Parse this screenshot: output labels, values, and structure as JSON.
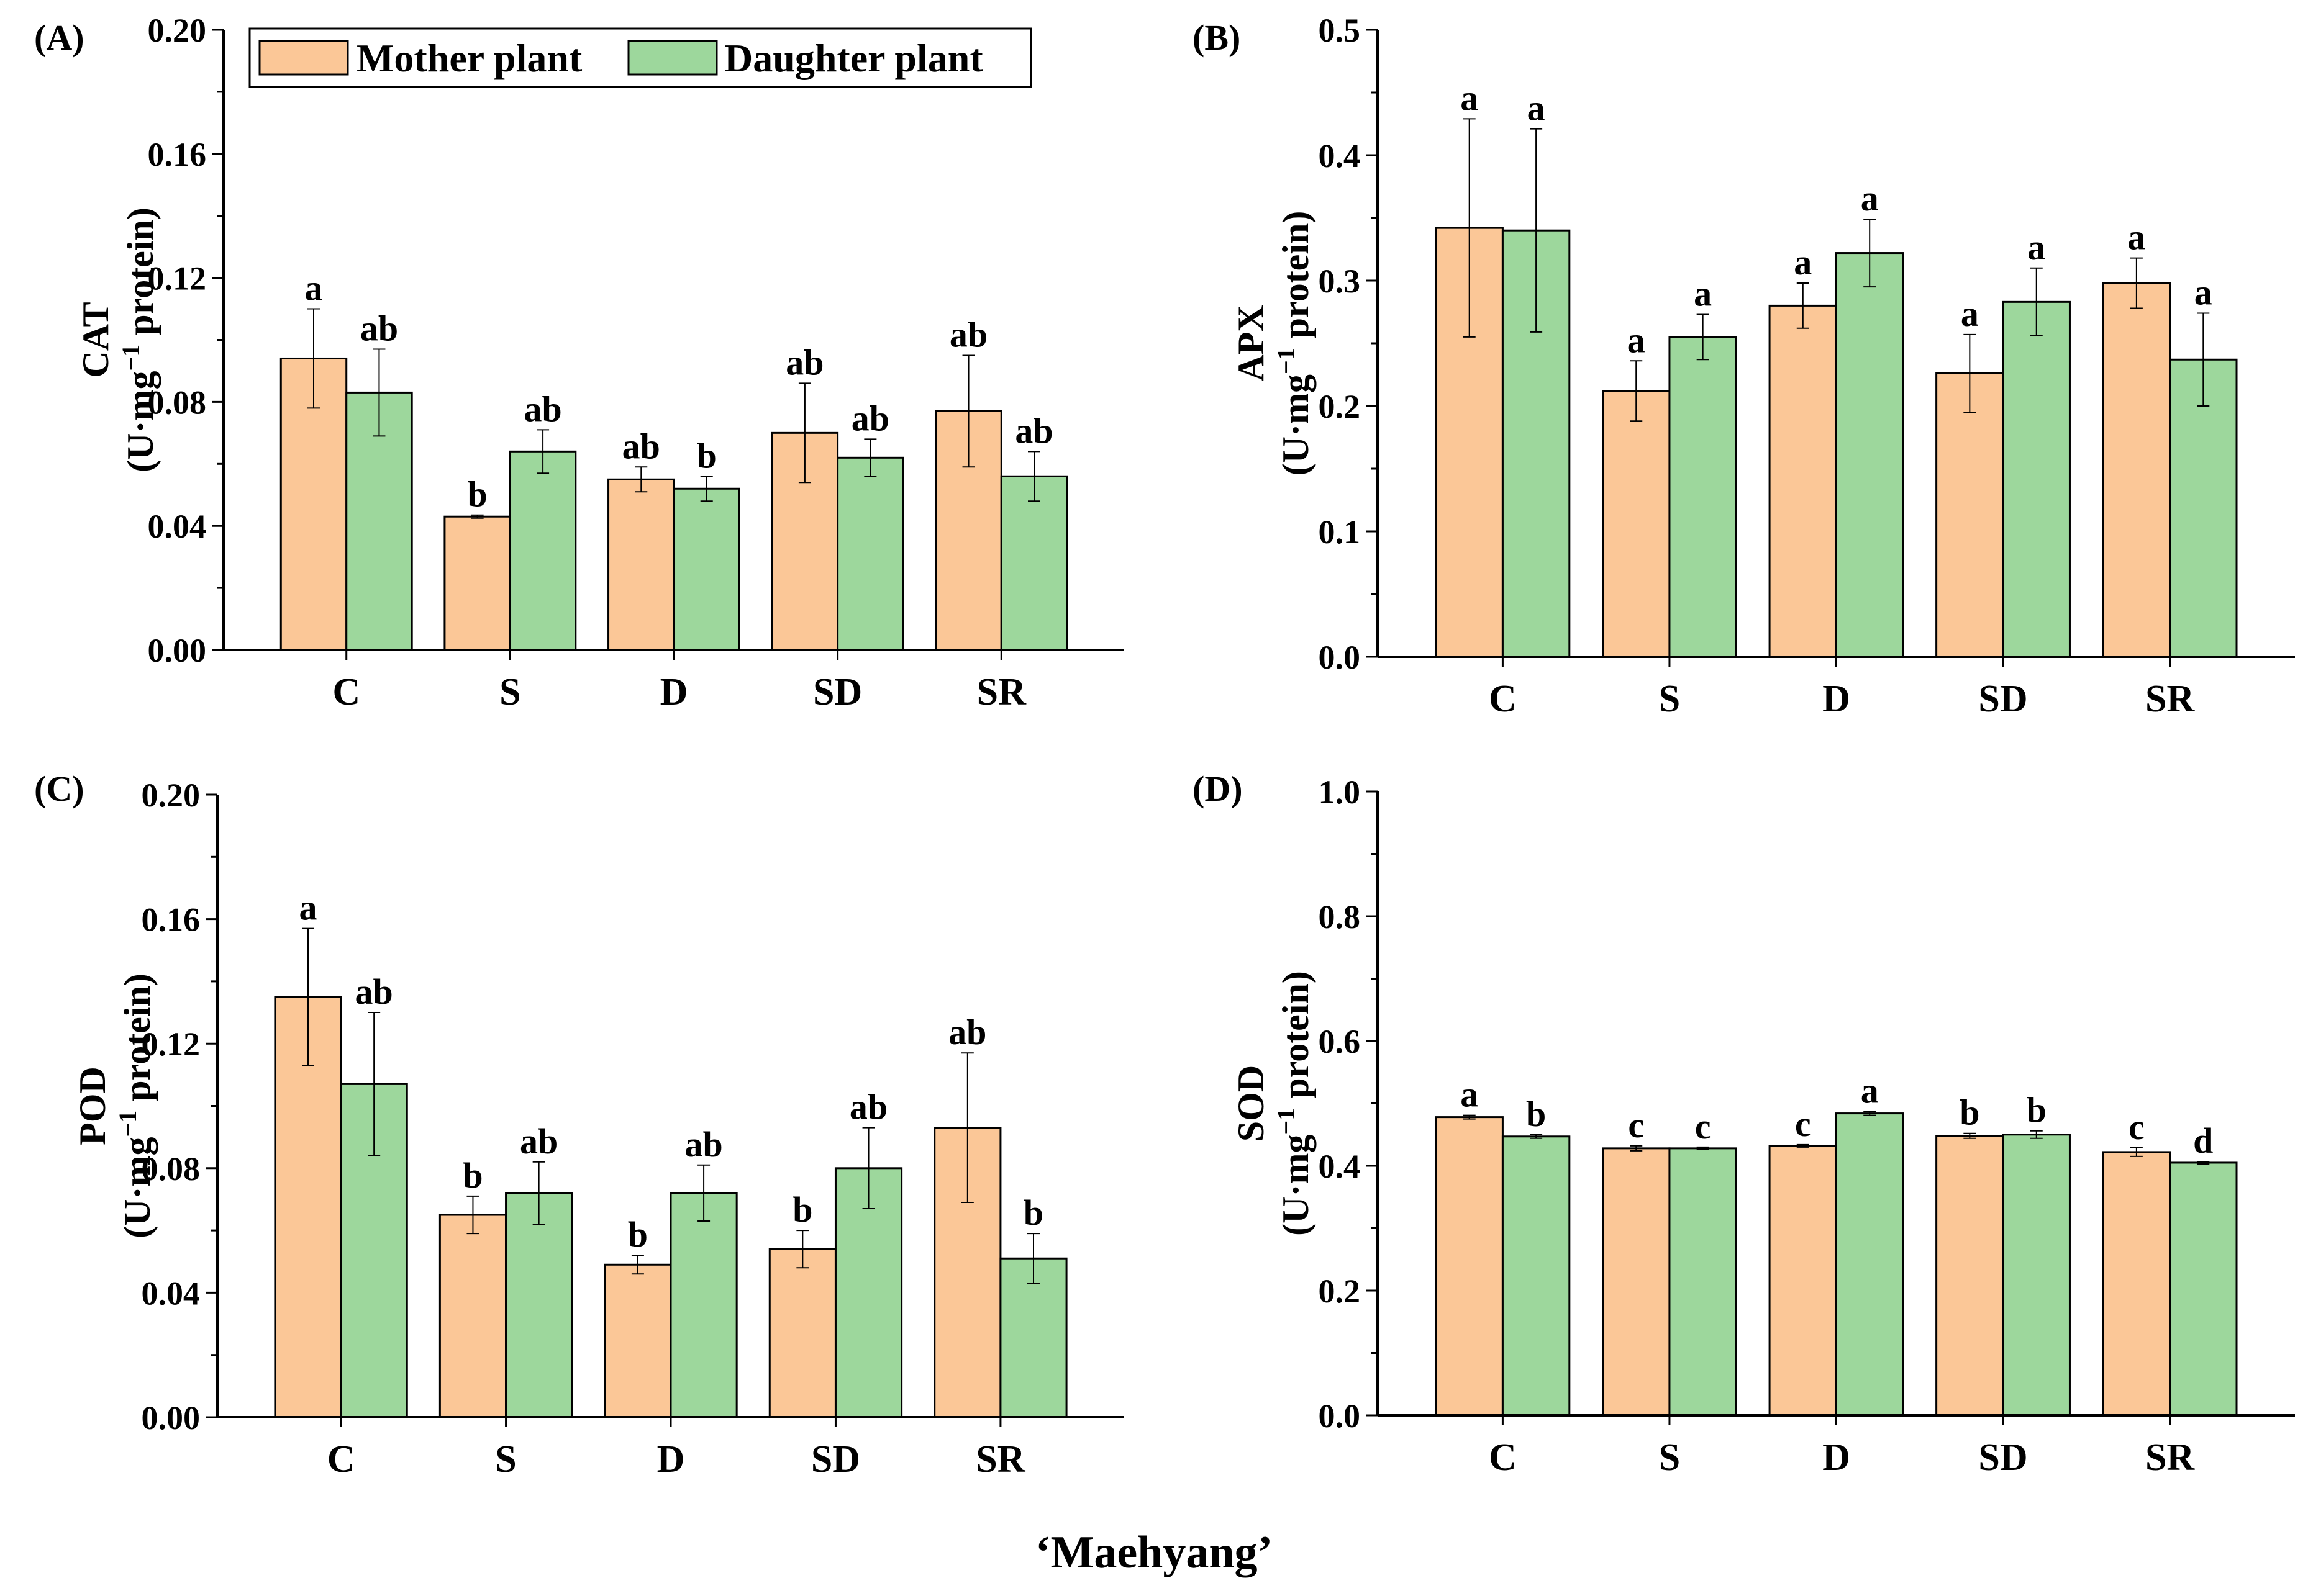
{
  "figure": {
    "x_title": "‘Maehyang’"
  },
  "legend": {
    "mother": "Mother plant",
    "daughter": "Daughter plant"
  },
  "colors": {
    "mother": "#FBC797",
    "daughter": "#9DD79C",
    "axis": "#000000"
  },
  "chart_data": [
    {
      "id": "A",
      "panel_label": "(A)",
      "type": "bar",
      "ylabel_main": "CAT",
      "ylabel_unit": "(U·mg",
      "ylabel_sup": "−1",
      "ylabel_tail": " protein)",
      "ylim": [
        0,
        0.2
      ],
      "yticks": [
        0,
        0.04,
        0.08,
        0.12,
        0.16,
        0.2
      ],
      "ytick_labels": [
        "0.00",
        "0.04",
        "0.08",
        "0.12",
        "0.16",
        "0.20"
      ],
      "categories": [
        "C",
        "S",
        "D",
        "SD",
        "SR"
      ],
      "series": [
        {
          "name": "Mother plant",
          "values": [
            0.094,
            0.043,
            0.055,
            0.07,
            0.077
          ],
          "errors": [
            0.016,
            0.0005,
            0.004,
            0.016,
            0.018
          ],
          "letters": [
            "a",
            "b",
            "ab",
            "ab",
            "ab"
          ]
        },
        {
          "name": "Daughter plant",
          "values": [
            0.083,
            0.064,
            0.052,
            0.062,
            0.056
          ],
          "errors": [
            0.014,
            0.007,
            0.004,
            0.006,
            0.008
          ],
          "letters": [
            "ab",
            "ab",
            "b",
            "ab",
            "ab"
          ]
        }
      ]
    },
    {
      "id": "B",
      "panel_label": "(B)",
      "type": "bar",
      "ylabel_main": "APX",
      "ylabel_unit": "(U·mg",
      "ylabel_sup": "−1",
      "ylabel_tail": " protein)",
      "ylim": [
        0,
        0.5
      ],
      "yticks": [
        0,
        0.1,
        0.2,
        0.3,
        0.4,
        0.5
      ],
      "ytick_labels": [
        "0.0",
        "0.1",
        "0.2",
        "0.3",
        "0.4",
        "0.5"
      ],
      "categories": [
        "C",
        "S",
        "D",
        "SD",
        "SR"
      ],
      "series": [
        {
          "name": "Mother plant",
          "values": [
            0.342,
            0.212,
            0.28,
            0.226,
            0.298
          ],
          "errors": [
            0.087,
            0.024,
            0.018,
            0.031,
            0.02
          ],
          "letters": [
            "a",
            "a",
            "a",
            "a",
            "a"
          ]
        },
        {
          "name": "Daughter plant",
          "values": [
            0.34,
            0.255,
            0.322,
            0.283,
            0.237
          ],
          "errors": [
            0.081,
            0.018,
            0.027,
            0.027,
            0.037
          ],
          "letters": [
            "a",
            "a",
            "a",
            "a",
            "a"
          ]
        }
      ]
    },
    {
      "id": "C",
      "panel_label": "(C)",
      "type": "bar",
      "ylabel_main": "POD",
      "ylabel_unit": "(U·mg",
      "ylabel_sup": "−1",
      "ylabel_tail": " protein)",
      "ylim": [
        0,
        0.2
      ],
      "yticks": [
        0,
        0.04,
        0.08,
        0.12,
        0.16,
        0.2
      ],
      "ytick_labels": [
        "0.00",
        "0.04",
        "0.08",
        "0.12",
        "0.16",
        "0.20"
      ],
      "categories": [
        "C",
        "S",
        "D",
        "SD",
        "SR"
      ],
      "series": [
        {
          "name": "Mother plant",
          "values": [
            0.135,
            0.065,
            0.049,
            0.054,
            0.093
          ],
          "errors": [
            0.022,
            0.006,
            0.003,
            0.006,
            0.024
          ],
          "letters": [
            "a",
            "b",
            "b",
            "b",
            "ab"
          ]
        },
        {
          "name": "Daughter plant",
          "values": [
            0.107,
            0.072,
            0.072,
            0.08,
            0.051
          ],
          "errors": [
            0.023,
            0.01,
            0.009,
            0.013,
            0.008
          ],
          "letters": [
            "ab",
            "ab",
            "ab",
            "ab",
            "b"
          ]
        }
      ]
    },
    {
      "id": "D",
      "panel_label": "(D)",
      "type": "bar",
      "ylabel_main": "SOD",
      "ylabel_unit": "(U·mg",
      "ylabel_sup": "−1",
      "ylabel_tail": " protein)",
      "ylim": [
        0,
        1.0
      ],
      "yticks": [
        0,
        0.2,
        0.4,
        0.6,
        0.8,
        1.0
      ],
      "ytick_labels": [
        "0.0",
        "0.2",
        "0.4",
        "0.6",
        "0.8",
        "1.0"
      ],
      "categories": [
        "C",
        "S",
        "D",
        "SD",
        "SR"
      ],
      "series": [
        {
          "name": "Mother plant",
          "values": [
            0.478,
            0.428,
            0.432,
            0.448,
            0.422
          ],
          "errors": [
            0.003,
            0.004,
            0.002,
            0.004,
            0.007
          ],
          "letters": [
            "a",
            "c",
            "c",
            "b",
            "c"
          ]
        },
        {
          "name": "Daughter plant",
          "values": [
            0.447,
            0.428,
            0.484,
            0.45,
            0.405
          ],
          "errors": [
            0.003,
            0.002,
            0.003,
            0.006,
            0.002
          ],
          "letters": [
            "b",
            "c",
            "a",
            "b",
            "d"
          ]
        }
      ]
    }
  ]
}
